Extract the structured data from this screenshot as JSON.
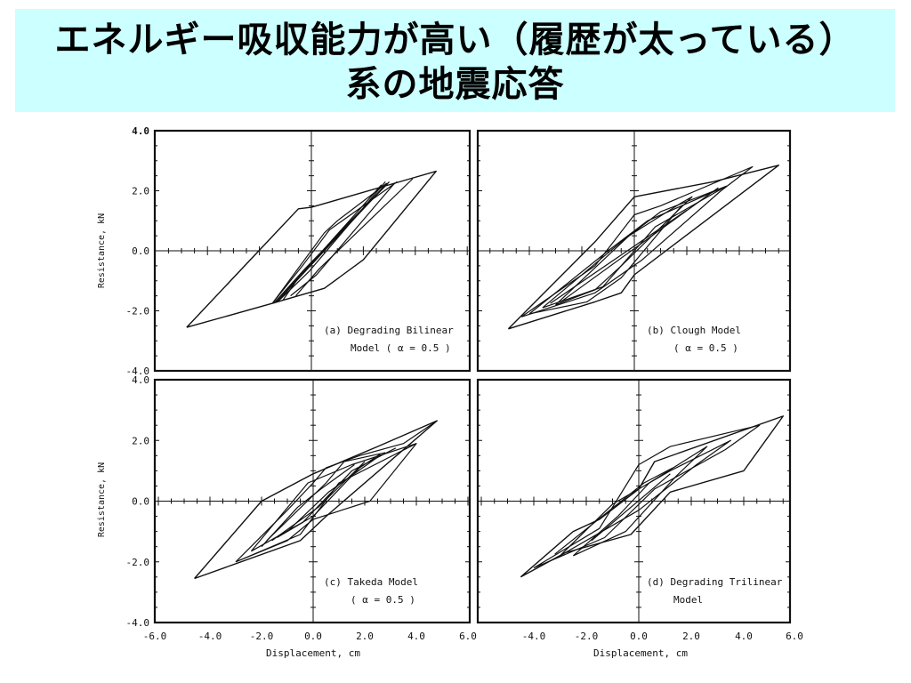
{
  "title": {
    "line1": "エネルギー吸収能力が高い（履歴が太っている）",
    "line2": "系の地震応答"
  },
  "shared_axes": {
    "xlabel": "Displacement,  cm",
    "ylabel": "Resistance,  kN",
    "x_ticks": [
      "-6.0",
      "-4.0",
      "-2.0",
      "0.0",
      "2.0",
      "4.0",
      "6.0"
    ],
    "x_ticks_right": [
      "-4.0",
      "-2.0",
      "0.0",
      "2.0",
      "4.0",
      "6.0"
    ],
    "y_ticks": [
      "4.0",
      "2.0",
      "0.0",
      "-2.0",
      "-4.0"
    ]
  },
  "chart_data": [
    {
      "type": "line",
      "panel": "a",
      "caption_line1": "(a) Degrading Bilinear",
      "caption_line2": "Model ( α = 0.5 )",
      "xlabel": "Displacement,  cm",
      "ylabel": "Resistance,  kN",
      "xlim": [
        -6,
        6
      ],
      "ylim": [
        -4,
        4
      ],
      "loops": [
        [
          [
            -4.8,
            -2.55
          ],
          [
            -1.5,
            -1.75
          ],
          [
            -0.5,
            -1.5
          ],
          [
            0.5,
            -1.25
          ],
          [
            2.0,
            -0.3
          ],
          [
            4.8,
            2.65
          ],
          [
            3.8,
            2.4
          ],
          [
            0,
            1.45
          ],
          [
            -0.5,
            1.4
          ],
          [
            -4.8,
            -2.55
          ]
        ],
        [
          [
            -1.5,
            -1.75
          ],
          [
            0.5,
            0.6
          ],
          [
            1.0,
            1.0
          ],
          [
            2.9,
            2.25
          ]
        ],
        [
          [
            -1.5,
            -1.75
          ],
          [
            -0.3,
            -0.45
          ],
          [
            0.7,
            0.7
          ],
          [
            3.3,
            2.3
          ]
        ],
        [
          [
            -1.2,
            -1.6
          ],
          [
            1.0,
            0.55
          ],
          [
            3.0,
            2.3
          ]
        ],
        [
          [
            -1.1,
            -1.65
          ],
          [
            -0.5,
            -0.9
          ],
          [
            2.7,
            2.2
          ]
        ],
        [
          [
            -0.8,
            -1.5
          ],
          [
            0.2,
            -0.8
          ],
          [
            3.2,
            2.25
          ]
        ],
        [
          [
            -1.45,
            -1.75
          ],
          [
            -0.25,
            -0.6
          ],
          [
            2.95,
            2.25
          ]
        ],
        [
          [
            -1.3,
            -1.7
          ],
          [
            -0.1,
            -0.7
          ],
          [
            2.85,
            2.3
          ]
        ],
        [
          [
            -0.6,
            -1.5
          ],
          [
            0.3,
            -0.6
          ],
          [
            3.9,
            2.4
          ]
        ],
        [
          [
            -1.4,
            -1.72
          ],
          [
            2.9,
            2.25
          ]
        ],
        [
          [
            -1.35,
            -1.72
          ],
          [
            2.92,
            2.25
          ]
        ]
      ]
    },
    {
      "type": "line",
      "panel": "b",
      "caption_line1": "(b) Clough Model",
      "caption_line2": "( α = 0.5 )",
      "xlabel": "Displacement,  cm",
      "ylabel": "Resistance,  kN",
      "xlim": [
        -6,
        6
      ],
      "ylim": [
        -4,
        4
      ],
      "loops": [
        [
          [
            -4.8,
            -2.6
          ],
          [
            -1.5,
            -1.7
          ],
          [
            -0.5,
            -1.4
          ],
          [
            0.0,
            -0.8
          ],
          [
            5.5,
            2.85
          ],
          [
            3.0,
            2.3
          ],
          [
            0.0,
            1.8
          ],
          [
            -1.5,
            0.3
          ],
          [
            -4.8,
            -2.6
          ]
        ],
        [
          [
            -4.3,
            -2.2
          ],
          [
            -1.5,
            -0.5
          ],
          [
            0.0,
            1.2
          ],
          [
            1.0,
            1.5
          ],
          [
            4.5,
            2.8
          ],
          [
            3.3,
            2.0
          ],
          [
            0.3,
            -0.3
          ],
          [
            -1.5,
            -1.4
          ],
          [
            -4.3,
            -2.2
          ]
        ],
        [
          [
            -4.0,
            -2.1
          ],
          [
            -1.0,
            0.0
          ],
          [
            0.5,
            1.0
          ],
          [
            3.5,
            2.15
          ],
          [
            1.8,
            1.5
          ],
          [
            -0.5,
            -0.9
          ],
          [
            -1.8,
            -1.7
          ],
          [
            -4.0,
            -2.1
          ]
        ],
        [
          [
            -3.5,
            -1.9
          ],
          [
            -0.5,
            0.3
          ],
          [
            1.0,
            1.3
          ],
          [
            3.5,
            2.15
          ],
          [
            0.8,
            0.8
          ],
          [
            -1.2,
            -1.2
          ],
          [
            -3.5,
            -1.9
          ]
        ],
        [
          [
            -3.0,
            -1.8
          ],
          [
            -0.2,
            0.5
          ],
          [
            1.8,
            1.6
          ],
          [
            2.2,
            1.8
          ],
          [
            -0.5,
            -0.5
          ],
          [
            -1.5,
            -1.3
          ],
          [
            -3.0,
            -1.8
          ]
        ],
        [
          [
            -3.2,
            -1.75
          ],
          [
            2.0,
            1.35
          ]
        ],
        [
          [
            -2.8,
            -1.7
          ],
          [
            3.2,
            2.1
          ]
        ]
      ]
    },
    {
      "type": "line",
      "panel": "c",
      "caption_line1": "(c) Takeda Model",
      "caption_line2": "( α = 0.5 )",
      "xlabel": "Displacement,  cm",
      "ylabel": "Resistance,  kN",
      "xlim": [
        -6,
        6
      ],
      "ylim": [
        -4,
        4
      ],
      "loops": [
        [
          [
            -4.6,
            -2.55
          ],
          [
            -0.5,
            -1.3
          ],
          [
            0.5,
            -0.5
          ],
          [
            4.8,
            2.65
          ],
          [
            2.5,
            1.8
          ],
          [
            0.0,
            0.9
          ],
          [
            -2.0,
            0.0
          ],
          [
            -4.6,
            -2.55
          ]
        ],
        [
          [
            -3.0,
            -2.0
          ],
          [
            -1.0,
            -0.3
          ],
          [
            0.0,
            0.6
          ],
          [
            0.5,
            1.1
          ],
          [
            1.8,
            1.5
          ],
          [
            3.5,
            1.9
          ],
          [
            4.8,
            2.65
          ]
        ],
        [
          [
            -3.0,
            -2.0
          ],
          [
            -0.5,
            -1.1
          ],
          [
            1.0,
            0.6
          ],
          [
            4.0,
            1.9
          ],
          [
            2.2,
            0.0
          ],
          [
            0.0,
            -0.6
          ],
          [
            -1.0,
            -1.3
          ],
          [
            -3.0,
            -2.0
          ]
        ],
        [
          [
            -2.4,
            -1.65
          ],
          [
            -0.2,
            0.6
          ],
          [
            1.5,
            1.2
          ],
          [
            4.0,
            1.9
          ]
        ],
        [
          [
            -2.4,
            -1.65
          ],
          [
            0.0,
            -0.5
          ],
          [
            1.8,
            1.1
          ],
          [
            2.6,
            1.55
          ]
        ],
        [
          [
            -1.8,
            -1.3
          ],
          [
            0.5,
            0.6
          ],
          [
            1.2,
            1.3
          ],
          [
            2.8,
            1.6
          ]
        ],
        [
          [
            -1.4,
            -1.2
          ],
          [
            -0.4,
            -0.7
          ],
          [
            1.5,
            1.0
          ],
          [
            3.2,
            1.75
          ]
        ],
        [
          [
            -2.0,
            -1.5
          ],
          [
            -0.6,
            -0.2
          ],
          [
            0.3,
            0.4
          ],
          [
            1.6,
            1.2
          ]
        ],
        [
          [
            -1.6,
            -1.3
          ],
          [
            0.2,
            -0.2
          ],
          [
            2.0,
            1.3
          ]
        ],
        [
          [
            -1.0,
            -1.0
          ],
          [
            0.6,
            0.3
          ],
          [
            2.5,
            1.45
          ]
        ]
      ]
    },
    {
      "type": "line",
      "panel": "d",
      "caption_line1": "(d) Degrading Trilinear",
      "caption_line2": "Model",
      "xlabel": "Displacement,  cm",
      "ylabel": "Resistance,  kN",
      "xlim": [
        -6,
        6
      ],
      "ylim": [
        -4,
        4
      ],
      "loops": [
        [
          [
            -4.5,
            -2.5
          ],
          [
            -2.5,
            -1.0
          ],
          [
            -1.5,
            -0.6
          ],
          [
            0.0,
            0.4
          ],
          [
            0.6,
            1.3
          ],
          [
            5.5,
            2.8
          ],
          [
            4.0,
            1.0
          ],
          [
            1.2,
            0.3
          ],
          [
            -0.3,
            -1.1
          ],
          [
            -2.8,
            -1.7
          ],
          [
            -4.5,
            -2.5
          ]
        ],
        [
          [
            -4.0,
            -2.2
          ],
          [
            -1.5,
            -0.9
          ],
          [
            0.0,
            1.2
          ],
          [
            1.2,
            1.8
          ],
          [
            4.6,
            2.5
          ],
          [
            3.3,
            1.7
          ],
          [
            0.6,
            0.4
          ],
          [
            -1.3,
            -1.2
          ],
          [
            -4.0,
            -2.2
          ]
        ],
        [
          [
            -3.0,
            -1.8
          ],
          [
            -1.0,
            -0.1
          ],
          [
            1.2,
            1.0
          ],
          [
            3.5,
            2.0
          ],
          [
            2.2,
            1.2
          ],
          [
            0.0,
            -0.3
          ],
          [
            -3.0,
            -1.8
          ]
        ],
        [
          [
            -2.5,
            -1.8
          ],
          [
            -0.8,
            -0.5
          ],
          [
            0.4,
            0.6
          ],
          [
            2.6,
            1.8
          ],
          [
            1.4,
            0.8
          ],
          [
            -0.5,
            -1.0
          ],
          [
            -2.5,
            -1.8
          ]
        ],
        [
          [
            -1.8,
            -1.3
          ],
          [
            1.2,
            0.9
          ]
        ],
        [
          [
            -3.2,
            -1.75
          ],
          [
            0.2,
            0.6
          ],
          [
            1.3,
            1.1
          ]
        ]
      ]
    }
  ]
}
